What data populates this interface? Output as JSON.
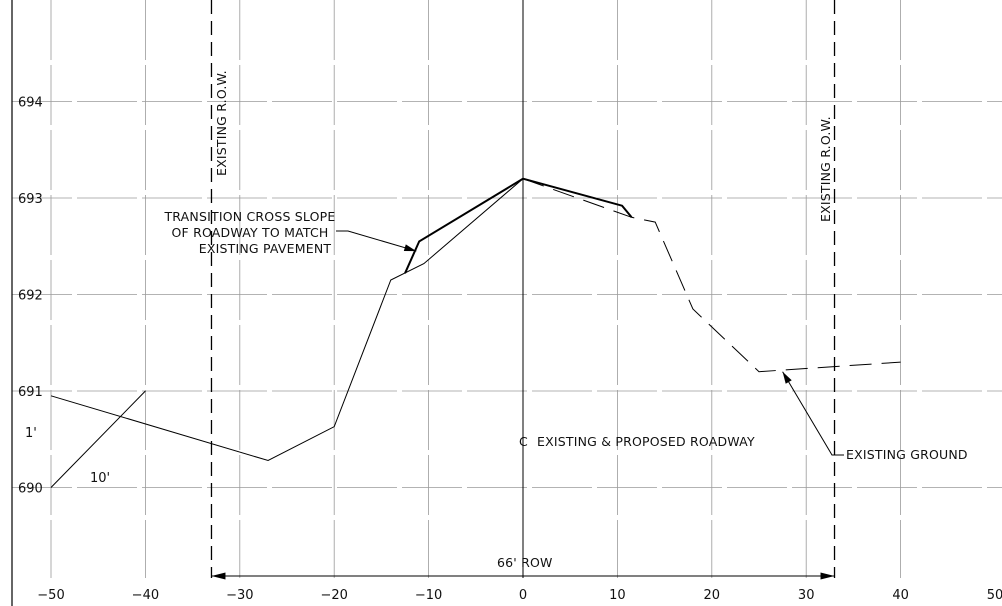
{
  "x_ticks": [
    "-50",
    "-40",
    "-30",
    "-20",
    "-10",
    "0",
    "10",
    "20",
    "30",
    "40",
    "50"
  ],
  "y_ticks": [
    "690",
    "691",
    "692",
    "693",
    "694"
  ],
  "labels": {
    "row_left": "EXISTING R.O.W.",
    "row_right": "EXISTING R.O.W.",
    "transition_line1": "TRANSITION CROSS SLOPE",
    "transition_line2": "OF ROADWAY TO MATCH",
    "transition_line3": "EXISTING PAVEMENT",
    "centerline": "EXISTING & PROPOSED ROADWAY",
    "existing_ground": "EXISTING GROUND",
    "row_width": "66' ROW",
    "slope_rise": "1'",
    "slope_run": "10'"
  },
  "profiles": {
    "existing_ground_solid": [
      [
        -50,
        690.95
      ],
      [
        -27,
        690.28
      ],
      [
        -20,
        690.63
      ],
      [
        -14,
        692.15
      ],
      [
        -10.5,
        692.32
      ],
      [
        0,
        693.2
      ]
    ],
    "existing_ground_dashed": [
      [
        0,
        693.2
      ],
      [
        11.5,
        692.8
      ],
      [
        14,
        692.75
      ],
      [
        18,
        691.85
      ],
      [
        25,
        691.2
      ],
      [
        40,
        691.3
      ]
    ],
    "proposed_pavement": [
      [
        -12.5,
        692.22
      ],
      [
        -11,
        692.55
      ],
      [
        0,
        693.2
      ],
      [
        10.5,
        692.92
      ],
      [
        11.5,
        692.8
      ]
    ],
    "slope_reference": [
      [
        -50,
        690
      ],
      [
        -40,
        691
      ]
    ]
  },
  "right_of_way_offsets": [
    -33,
    33
  ],
  "grid_visible": true
}
